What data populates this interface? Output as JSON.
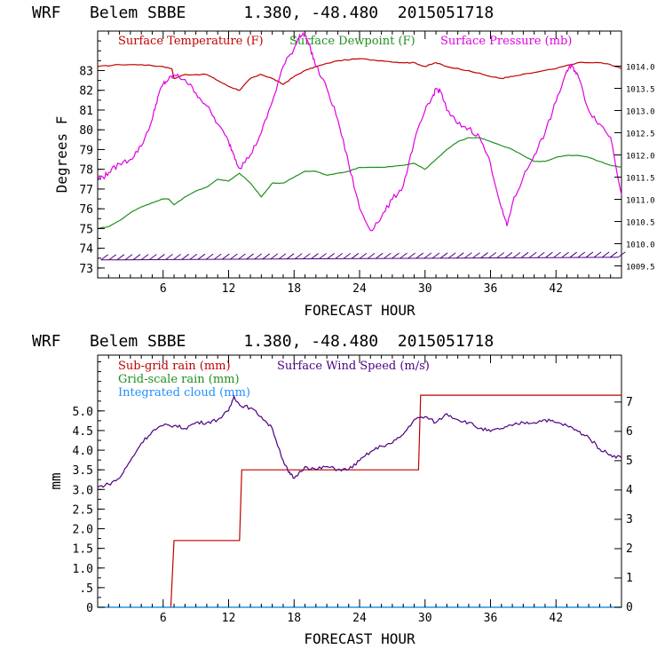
{
  "colors": {
    "temperature": "#c00000",
    "dewpoint": "#1f8f1f",
    "pressure": "#e000e0",
    "wind_barb": "#4b0082",
    "subgrid_rain": "#c00000",
    "grid_rain": "#1f8f1f",
    "cloud": "#1e90ff",
    "wind_speed": "#4b0082",
    "axis": "#000000"
  },
  "chart_data": [
    {
      "type": "line",
      "title": "WRF   Belem SBBE      1.380, -48.480  2015051718",
      "xlabel": "FORECAST HOUR",
      "ylabel": "Degrees F",
      "xlim": [
        0,
        48
      ],
      "ylim": [
        72.5,
        85
      ],
      "x_ticks": [
        "6",
        "12",
        "18",
        "24",
        "30",
        "36",
        "42"
      ],
      "y_ticks": [
        "73",
        "74",
        "75",
        "76",
        "77",
        "78",
        "79",
        "80",
        "81",
        "82",
        "83"
      ],
      "y2_ticks": [
        "1009.5",
        "1010.0",
        "1010.5",
        "1011.0",
        "1011.5",
        "1012.0",
        "1012.5",
        "1013.0",
        "1013.5",
        "1014.0"
      ],
      "y2lim": [
        1009.23,
        1014.79
      ],
      "legend": [
        "Surface Temperature (F)",
        "Surface Dewpoint (F)",
        "Surface Pressure (mb)"
      ],
      "legend_position": "top",
      "series": [
        {
          "name": "Surface Temperature (F)",
          "axis": "left",
          "x": [
            0,
            2,
            4,
            6,
            6.8,
            7,
            8,
            10,
            11,
            12,
            13,
            14,
            15,
            16,
            17,
            18,
            19,
            20,
            22,
            24,
            26,
            28,
            29,
            30,
            31,
            32,
            34,
            36,
            37,
            38,
            40,
            42,
            44,
            46,
            47,
            48
          ],
          "values": [
            83.2,
            83.3,
            83.3,
            83.2,
            83.1,
            82.6,
            82.8,
            82.8,
            82.5,
            82.2,
            82.0,
            82.6,
            82.8,
            82.6,
            82.3,
            82.7,
            83.0,
            83.2,
            83.5,
            83.6,
            83.5,
            83.4,
            83.4,
            83.2,
            83.4,
            83.2,
            83.0,
            82.7,
            82.6,
            82.7,
            82.9,
            83.1,
            83.4,
            83.4,
            83.3,
            83.1
          ]
        },
        {
          "name": "Surface Dewpoint (F)",
          "axis": "left",
          "x": [
            0,
            1,
            2,
            3,
            4,
            5,
            6,
            6.5,
            7,
            8,
            9,
            10,
            11,
            12,
            13,
            14,
            15,
            16,
            17,
            18,
            19,
            20,
            21,
            22,
            23,
            24,
            26,
            28,
            29,
            30,
            31,
            32,
            33,
            34,
            35,
            36,
            38,
            40,
            41,
            42,
            43,
            44,
            45,
            46,
            47,
            48
          ],
          "values": [
            75.0,
            75.1,
            75.4,
            75.8,
            76.1,
            76.3,
            76.5,
            76.5,
            76.2,
            76.6,
            76.9,
            77.1,
            77.5,
            77.4,
            77.8,
            77.3,
            76.6,
            77.3,
            77.3,
            77.6,
            77.9,
            77.9,
            77.7,
            77.8,
            77.9,
            78.1,
            78.1,
            78.2,
            78.3,
            78.0,
            78.5,
            79.0,
            79.4,
            79.6,
            79.6,
            79.4,
            79.0,
            78.4,
            78.4,
            78.6,
            78.7,
            78.7,
            78.6,
            78.4,
            78.2,
            78.1
          ]
        },
        {
          "name": "Surface Pressure (mb)",
          "axis": "right",
          "x": [
            0,
            0.5,
            1,
            2,
            3,
            4,
            5,
            5.5,
            6,
            6.5,
            7,
            8,
            9,
            10,
            11,
            12,
            12.5,
            13,
            14,
            15,
            16,
            17,
            18,
            18.5,
            19,
            19.5,
            20,
            21,
            22,
            23,
            24,
            25,
            26,
            27,
            28,
            29,
            30,
            30.5,
            31,
            31.5,
            32,
            33,
            34,
            35,
            36,
            37,
            37.5,
            38,
            39,
            40,
            41,
            42,
            43,
            43.5,
            44,
            45,
            46,
            47,
            48
          ],
          "values": [
            1011.5,
            1011.5,
            1011.6,
            1011.8,
            1011.9,
            1012.2,
            1012.8,
            1013.3,
            1013.6,
            1013.7,
            1013.8,
            1013.7,
            1013.4,
            1013.1,
            1012.7,
            1012.3,
            1012.0,
            1011.7,
            1012.0,
            1012.5,
            1013.2,
            1014.0,
            1014.4,
            1014.7,
            1014.7,
            1014.4,
            1014.0,
            1013.5,
            1012.8,
            1011.8,
            1010.8,
            1010.3,
            1010.6,
            1011.0,
            1011.3,
            1012.3,
            1013.0,
            1013.2,
            1013.5,
            1013.4,
            1013.0,
            1012.7,
            1012.6,
            1012.4,
            1011.8,
            1010.8,
            1010.4,
            1010.9,
            1011.5,
            1012.0,
            1012.5,
            1013.2,
            1013.9,
            1014.0,
            1013.8,
            1013.0,
            1012.7,
            1012.4,
            1011.1
          ]
        }
      ],
      "wind_barbs": {
        "name": "Surface wind barbs",
        "level": 73.5,
        "x_start": 0.3,
        "x_end": 47.7,
        "count": 65
      }
    },
    {
      "type": "line",
      "title": "WRF   Belem SBBE      1.380, -48.480  2015051718",
      "xlabel": "FORECAST HOUR",
      "ylabel": "mm",
      "xlim": [
        0,
        48
      ],
      "ylim": [
        0,
        6.42
      ],
      "x_ticks": [
        "6",
        "12",
        "18",
        "24",
        "30",
        "36",
        "42"
      ],
      "y_ticks": [
        "0",
        ".5",
        "1.0",
        "1.5",
        "2.0",
        "2.5",
        "3.0",
        "3.5",
        "4.0",
        "4.5",
        "5.0"
      ],
      "y2_ticks": [
        "0",
        "1",
        "2",
        "3",
        "4",
        "5",
        "6",
        "7"
      ],
      "y2lim": [
        0,
        8.6
      ],
      "legend": [
        "Sub-grid rain (mm)",
        "Grid-scale rain (mm)",
        "Integrated cloud (mm)",
        "Surface Wind Speed (m/s)"
      ],
      "legend_position": "top-left",
      "series": [
        {
          "name": "Sub-grid rain (mm)",
          "axis": "left",
          "step": true,
          "x": [
            6.7,
            7,
            13,
            13.2,
            29.4,
            29.6,
            48
          ],
          "values": [
            0,
            1.7,
            1.7,
            3.5,
            3.5,
            5.4,
            5.4
          ]
        },
        {
          "name": "Grid-scale rain (mm)",
          "axis": "left",
          "x": [
            0,
            48
          ],
          "values": [
            0,
            0
          ]
        },
        {
          "name": "Integrated cloud (mm)",
          "axis": "left",
          "x": [
            0,
            48
          ],
          "values": [
            0,
            0
          ]
        },
        {
          "name": "Surface Wind Speed (m/s)",
          "axis": "right",
          "x": [
            0,
            1,
            2,
            3,
            4,
            5,
            6,
            7,
            8,
            9,
            10,
            11,
            12,
            12.5,
            13,
            14,
            15,
            16,
            17,
            17.5,
            18,
            19,
            20,
            21,
            22,
            23,
            24,
            25,
            26,
            27,
            28,
            29,
            30,
            31,
            32,
            33,
            34,
            35,
            36,
            37,
            38,
            39,
            40,
            41,
            42,
            43,
            44,
            45,
            46,
            47,
            48
          ],
          "values": [
            4.1,
            4.2,
            4.4,
            5.0,
            5.6,
            6.0,
            6.2,
            6.2,
            6.1,
            6.3,
            6.3,
            6.4,
            6.7,
            7.2,
            6.9,
            6.8,
            6.5,
            6.1,
            5.0,
            4.6,
            4.4,
            4.8,
            4.7,
            4.8,
            4.7,
            4.7,
            5.0,
            5.3,
            5.5,
            5.6,
            5.9,
            6.4,
            6.5,
            6.3,
            6.6,
            6.4,
            6.3,
            6.1,
            6.0,
            6.1,
            6.2,
            6.3,
            6.3,
            6.4,
            6.3,
            6.2,
            6.0,
            5.8,
            5.4,
            5.2,
            5.1
          ]
        }
      ]
    }
  ]
}
